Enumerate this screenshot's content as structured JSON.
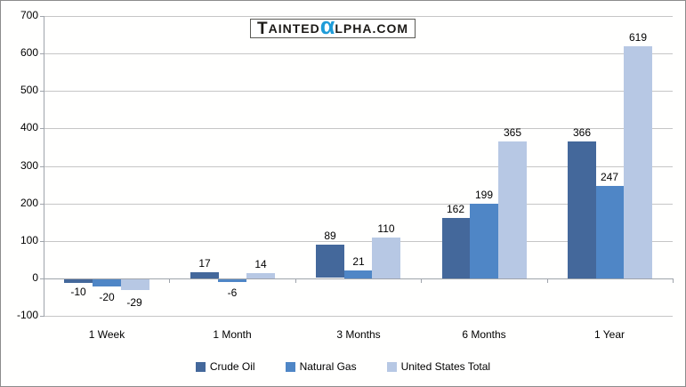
{
  "logo": {
    "first_letter": "T",
    "small_part1": "AINTED",
    "alpha_char": "α",
    "small_part2": "LPHA.COM",
    "alpha_color": "#1e9cd8"
  },
  "colors": {
    "crude_oil": "#44689b",
    "natural_gas": "#4f86c6",
    "us_total": "#b7c8e4",
    "gridline": "#c6c6c6",
    "axis": "#9fa4ab"
  },
  "chart_data": {
    "type": "bar",
    "categories": [
      "1 Week",
      "1 Month",
      "3 Months",
      "6 Months",
      "1 Year"
    ],
    "series": [
      {
        "name": "Crude Oil",
        "color": "#44689b",
        "texture": "none",
        "values": [
          -10,
          17,
          89,
          162,
          366
        ]
      },
      {
        "name": "Natural Gas",
        "color": "#4f86c6",
        "texture": "medium",
        "values": [
          -20,
          -6,
          21,
          199,
          247
        ]
      },
      {
        "name": "United States Total",
        "color": "#b7c8e4",
        "texture": "light",
        "values": [
          -29,
          14,
          110,
          365,
          619
        ]
      }
    ],
    "title": "",
    "xlabel": "",
    "ylabel": "",
    "ylim": [
      -100,
      700
    ],
    "ytick_step": 100,
    "ytick_labels": [
      "-100",
      "0",
      "100",
      "200",
      "300",
      "400",
      "500",
      "600",
      "700"
    ],
    "grid": true,
    "legend_position": "bottom",
    "data_labels_shown": true
  }
}
